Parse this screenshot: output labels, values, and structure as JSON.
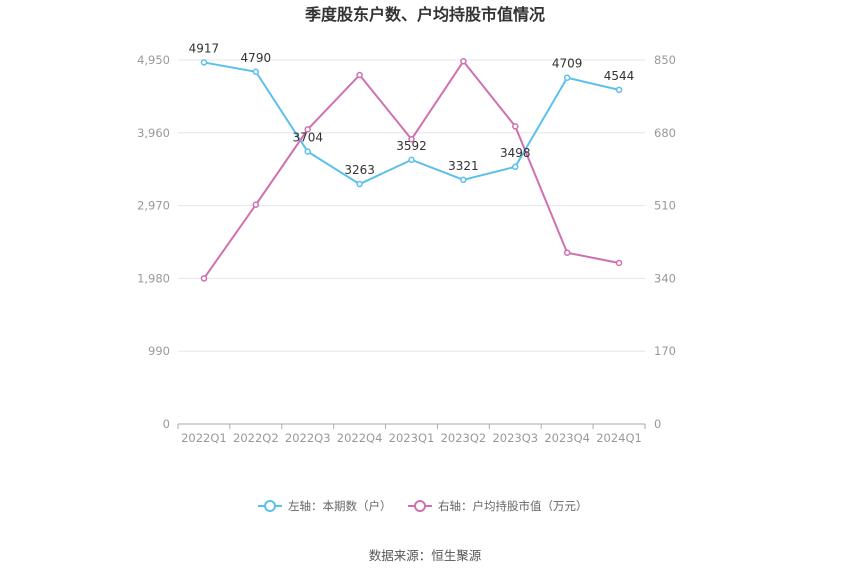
{
  "chart_data": {
    "type": "line",
    "title": "季度股东户数、户均持股市值情况",
    "categories": [
      "2022Q1",
      "2022Q2",
      "2022Q3",
      "2022Q4",
      "2023Q1",
      "2023Q2",
      "2023Q3",
      "2023Q4",
      "2024Q1"
    ],
    "left_axis": {
      "ticks": [
        "0",
        "990",
        "1,980",
        "2,970",
        "3,960",
        "4,950"
      ],
      "ylim": [
        0,
        4950
      ]
    },
    "right_axis": {
      "ticks": [
        "0",
        "170",
        "340",
        "510",
        "680",
        "850"
      ],
      "ylim": [
        0,
        850
      ]
    },
    "series": [
      {
        "name": "左轴：本期数（户）",
        "axis": "left",
        "color": "#5bc0eb",
        "values": [
          4917,
          4790,
          3704,
          3263,
          3592,
          3321,
          3498,
          4709,
          4544
        ],
        "labels": [
          "4917",
          "4790",
          "3704",
          "3263",
          "3592",
          "3321",
          "3498",
          "4709",
          "4544"
        ]
      },
      {
        "name": "右轴：户均持股市值（万元）",
        "axis": "right",
        "color": "#d070b0",
        "values": [
          340,
          512,
          688,
          815,
          665,
          847,
          695,
          400,
          376
        ]
      }
    ],
    "grid": true,
    "legend_position": "bottom"
  },
  "source": "数据来源：恒生聚源"
}
